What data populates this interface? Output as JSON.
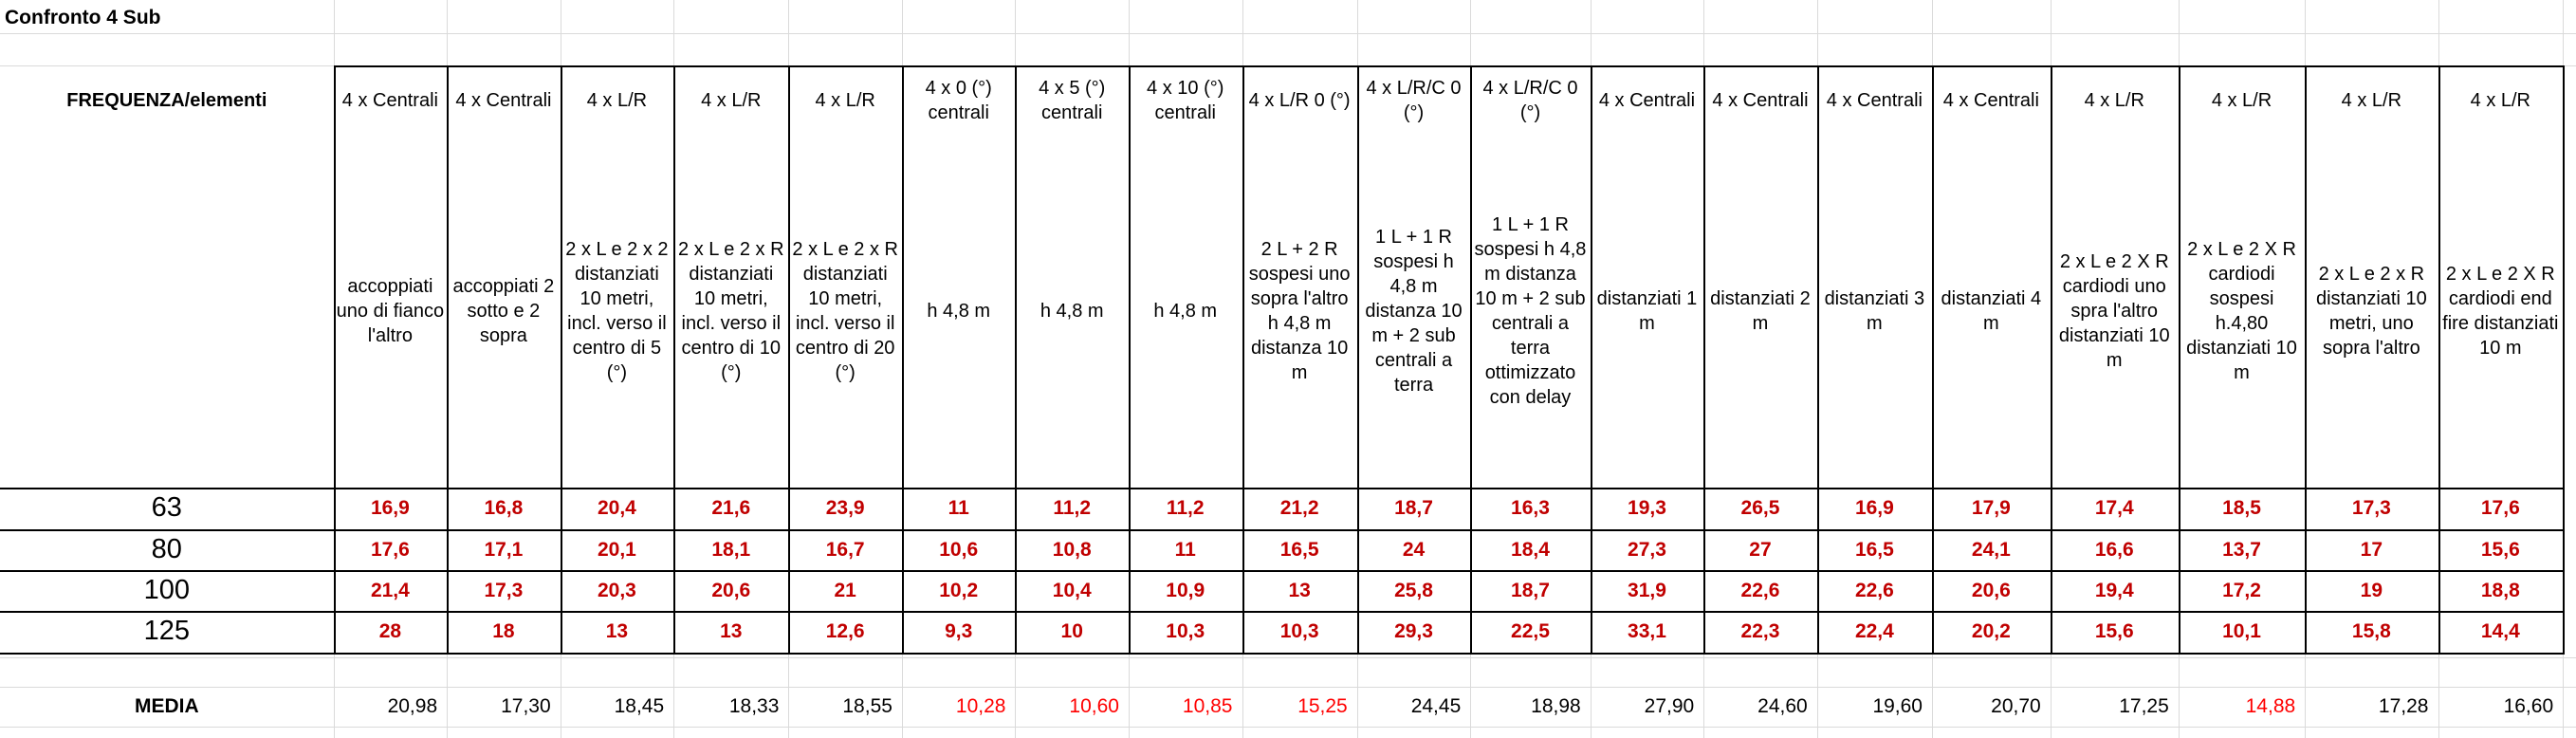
{
  "header": {
    "title": "Confronto 4 Sub"
  },
  "table": {
    "corner": "FREQUENZA/elementi",
    "columns": [
      {
        "type": "4 x Centrali",
        "description": "accoppiati uno di fianco l'altro"
      },
      {
        "type": "4 x Centrali",
        "description": "accoppiati 2 sotto e 2 sopra"
      },
      {
        "type": "4 x L/R",
        "description": "2 x L e 2 x 2 distanziati 10 metri, incl. verso il centro di 5 (°)"
      },
      {
        "type": "4 x L/R",
        "description": "2 x L e 2 x R distanziati 10 metri, incl. verso il centro di 10 (°)"
      },
      {
        "type": "4 x L/R",
        "description": "2 x L e 2 x R distanziati 10 metri, incl. verso il centro di 20 (°)"
      },
      {
        "type": "4 x 0 (°) centrali",
        "description": "h 4,8 m"
      },
      {
        "type": "4 x 5 (°) centrali",
        "description": "h 4,8 m"
      },
      {
        "type": "4 x 10 (°) centrali",
        "description": "h 4,8 m"
      },
      {
        "type": "4 x L/R 0 (°)",
        "description": "2 L + 2 R sospesi uno sopra l'altro h 4,8 m distanza 10 m"
      },
      {
        "type": "4 x L/R/C 0 (°)",
        "description": "1 L + 1 R sospesi h 4,8 m distanza 10 m + 2 sub centrali a terra"
      },
      {
        "type": "4 x L/R/C 0 (°)",
        "description": "1 L + 1 R sospesi h 4,8 m distanza 10 m + 2 sub centrali a terra ottimizzato con delay"
      },
      {
        "type": "4 x Centrali",
        "description": "distanziati 1 m"
      },
      {
        "type": "4 x Centrali",
        "description": "distanziati 2 m"
      },
      {
        "type": "4 x Centrali",
        "description": "distanziati 3 m"
      },
      {
        "type": "4 x Centrali",
        "description": "distanziati 4 m"
      },
      {
        "type": "4 x L/R",
        "description": "2 x L e 2 X R cardiodi uno spra l'altro distanziati 10 m"
      },
      {
        "type": "4 x L/R",
        "description": "2 x L e 2 X R cardiodi sospesi h.4,80 distanziati 10 m"
      },
      {
        "type": "4 x L/R",
        "description": "2 x L e 2 x R distanziati 10 metri, uno sopra l'altro"
      },
      {
        "type": "4 x L/R",
        "description": "2 x L e 2 X R cardiodi end fire distanziati 10 m"
      }
    ],
    "value_color": "#c00000",
    "rows": [
      {
        "frequency": "63",
        "values": [
          "16,9",
          "16,8",
          "20,4",
          "21,6",
          "23,9",
          "11",
          "11,2",
          "11,2",
          "21,2",
          "18,7",
          "16,3",
          "19,3",
          "26,5",
          "16,9",
          "17,9",
          "17,4",
          "18,5",
          "17,3",
          "17,6"
        ]
      },
      {
        "frequency": "80",
        "values": [
          "17,6",
          "17,1",
          "20,1",
          "18,1",
          "16,7",
          "10,6",
          "10,8",
          "11",
          "16,5",
          "24",
          "18,4",
          "27,3",
          "27",
          "16,5",
          "24,1",
          "16,6",
          "13,7",
          "17",
          "15,6"
        ]
      },
      {
        "frequency": "100",
        "values": [
          "21,4",
          "17,3",
          "20,3",
          "20,6",
          "21",
          "10,2",
          "10,4",
          "10,9",
          "13",
          "25,8",
          "18,7",
          "31,9",
          "22,6",
          "22,6",
          "20,6",
          "19,4",
          "17,2",
          "19",
          "18,8"
        ]
      },
      {
        "frequency": "125",
        "values": [
          "28",
          "18",
          "13",
          "13",
          "12,6",
          "9,3",
          "10",
          "10,3",
          "10,3",
          "29,3",
          "22,5",
          "33,1",
          "22,3",
          "22,4",
          "20,2",
          "15,6",
          "10,1",
          "15,8",
          "14,4"
        ]
      }
    ],
    "media": {
      "label": "MEDIA",
      "values": [
        "20,98",
        "17,30",
        "18,45",
        "18,33",
        "18,55",
        "10,28",
        "10,60",
        "10,85",
        "15,25",
        "24,45",
        "18,98",
        "27,90",
        "24,60",
        "19,60",
        "20,70",
        "17,25",
        "14,88",
        "17,28",
        "16,60"
      ],
      "colors": [
        "#000000",
        "#000000",
        "#000000",
        "#000000",
        "#000000",
        "#ff0000",
        "#ff0000",
        "#ff0000",
        "#ff0000",
        "#000000",
        "#000000",
        "#000000",
        "#000000",
        "#000000",
        "#000000",
        "#000000",
        "#ff0000",
        "#000000",
        "#000000"
      ]
    }
  }
}
